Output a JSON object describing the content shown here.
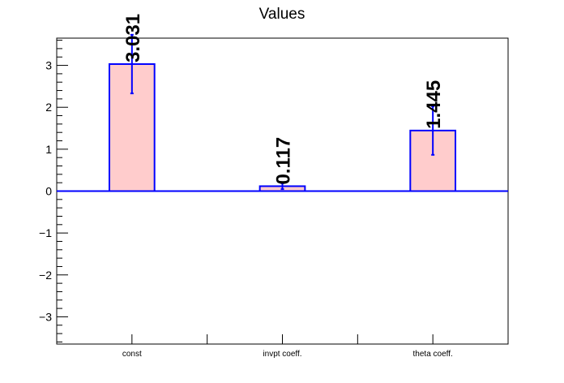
{
  "chart_data": {
    "type": "bar",
    "title": "Values",
    "categories": [
      "const",
      "invpt coeff.",
      "theta coeff."
    ],
    "values": [
      3.031,
      0.117,
      1.445
    ],
    "errors": [
      0.7,
      0.07,
      0.58
    ],
    "data_labels": [
      "3.031",
      "0.117",
      "1.445"
    ],
    "xlabel": "",
    "ylabel": "",
    "ylim": [
      -3.65,
      3.65
    ],
    "yticks": [
      -3,
      -2,
      -1,
      0,
      1,
      2,
      3
    ],
    "ytick_labels": [
      "−3",
      "−2",
      "−1",
      "0",
      "1",
      "2",
      "3"
    ],
    "grid": false,
    "colors": {
      "bar_fill": "#ffcccc",
      "bar_edge": "#0000ff",
      "error_bar": "#0000ff",
      "zero_line": "#0000ff",
      "axis": "#000000"
    }
  }
}
